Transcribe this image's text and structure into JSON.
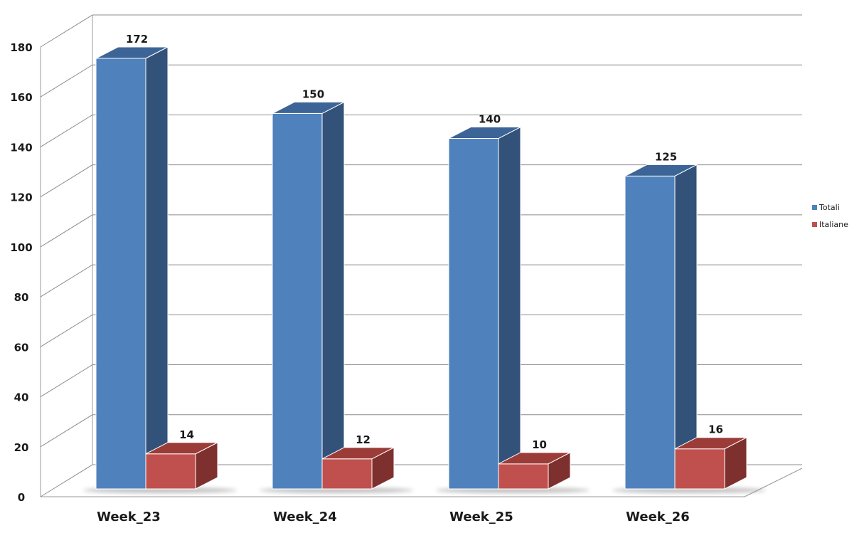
{
  "chart_data": {
    "type": "bar",
    "categories": [
      "Week_23",
      "Week_24",
      "Week_25",
      "Week_26"
    ],
    "series": [
      {
        "name": "Totali",
        "values": [
          172,
          150,
          140,
          125
        ],
        "color": "#4F81BD",
        "side_color": "#335279",
        "top_color": "#3C6496"
      },
      {
        "name": "Italiane",
        "values": [
          14,
          12,
          10,
          16
        ],
        "color": "#C0504D",
        "side_color": "#7E302E",
        "top_color": "#9B3C39"
      }
    ],
    "title": "",
    "xlabel": "",
    "ylabel": "",
    "ylim": [
      0,
      180
    ],
    "yticks": [
      0,
      20,
      40,
      60,
      80,
      100,
      120,
      140,
      160,
      180
    ],
    "grid": true,
    "legend_position": "right",
    "style": "3d-clustered-column"
  }
}
